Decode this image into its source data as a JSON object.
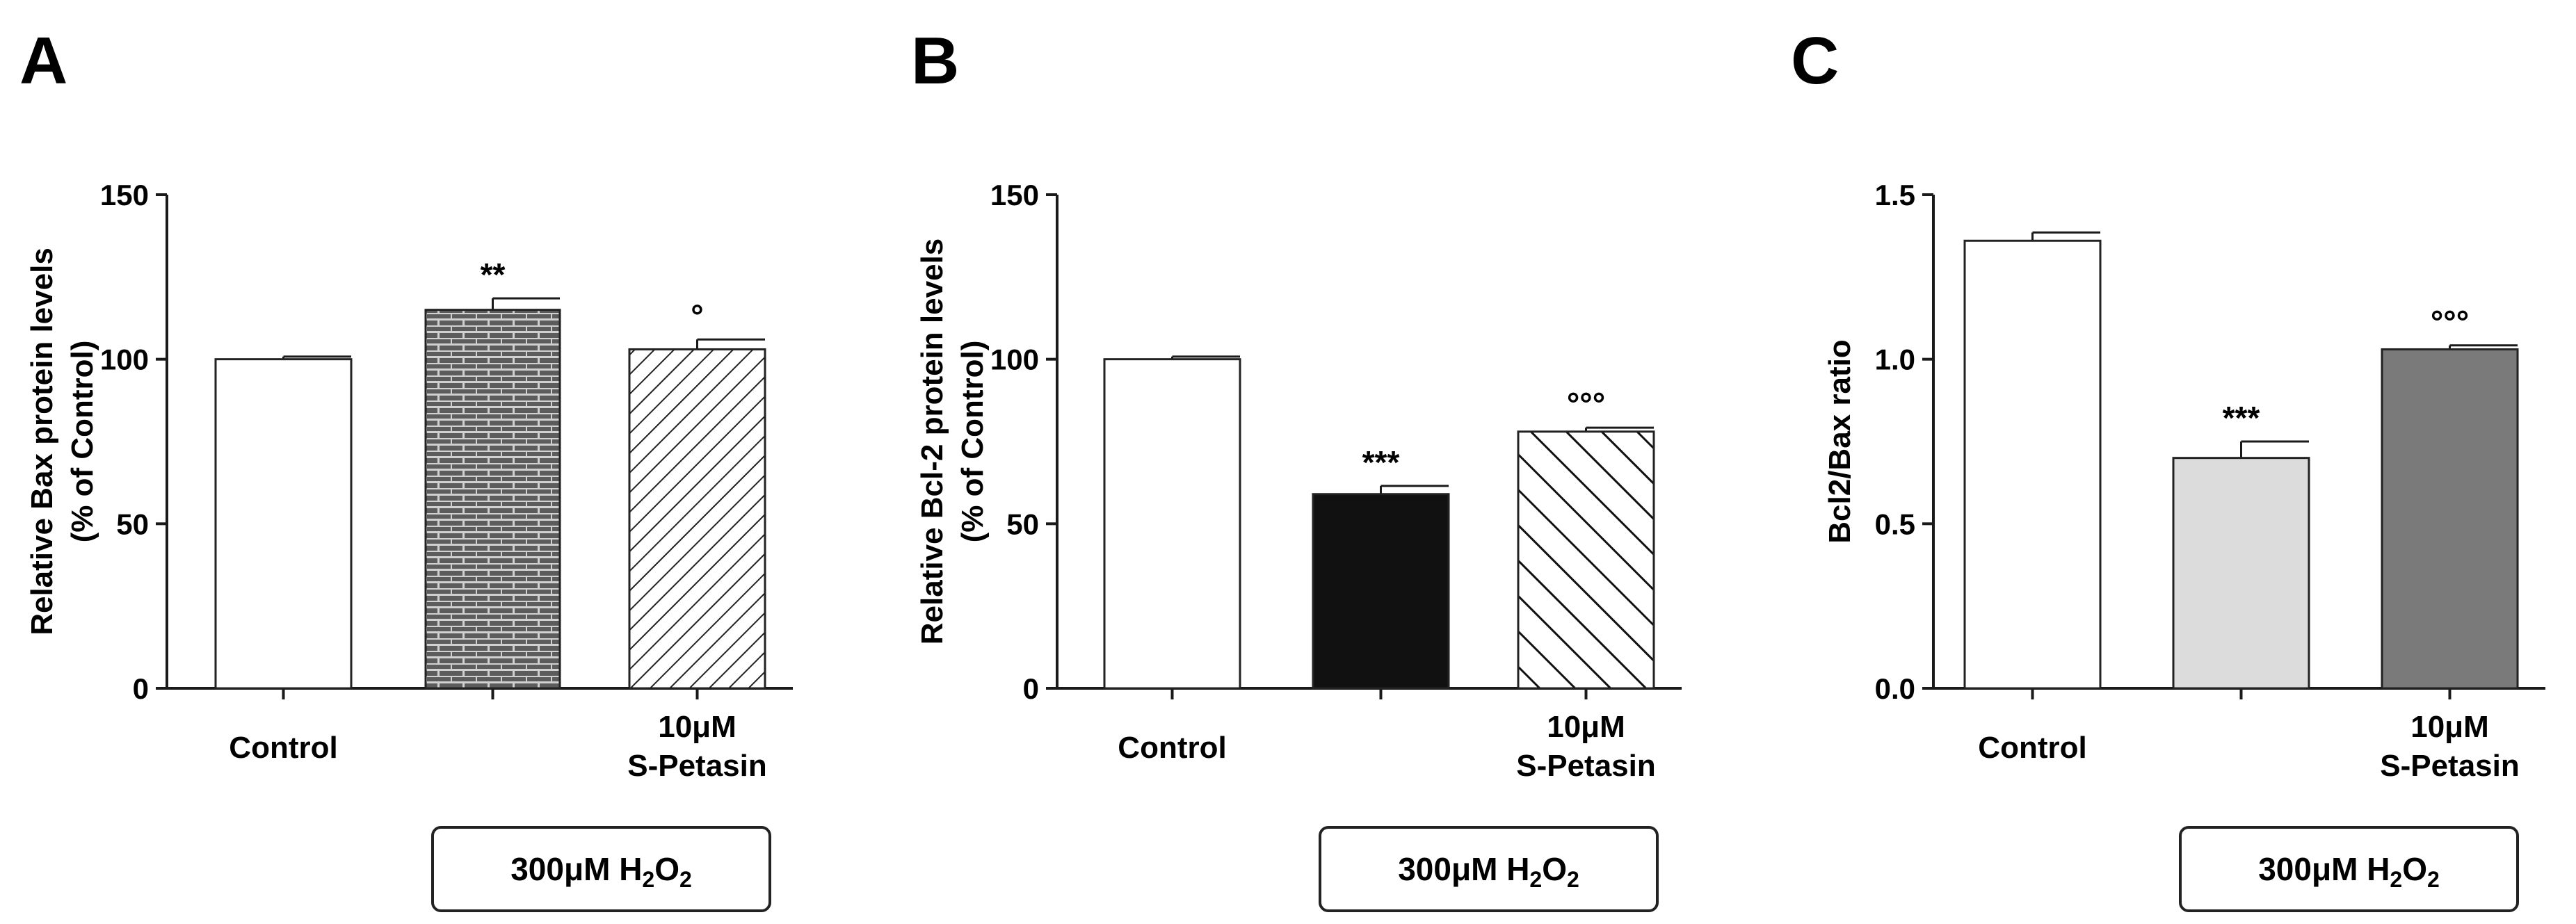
{
  "chart_data": [
    {
      "type": "bar",
      "panel": "A",
      "ylabel": [
        "Relative Bax protein levels",
        "(% of Control)"
      ],
      "ylim": [
        0,
        150
      ],
      "yticks": [
        "0",
        "50",
        "100",
        "150"
      ],
      "categories": [
        "Control",
        "",
        "10μM S-Petasin"
      ],
      "category_labels": [
        [
          "Control"
        ],
        [],
        [
          "10μM",
          "S-Petasin"
        ]
      ],
      "values": [
        100,
        115,
        103
      ],
      "errors": [
        0.8,
        3.5,
        3
      ],
      "annotations": [
        "",
        "**",
        "°"
      ],
      "fills": [
        "white",
        "brick",
        "hatch-fwd"
      ],
      "treatment": "300μM H2O2"
    },
    {
      "type": "bar",
      "panel": "B",
      "ylabel": [
        "Relative Bcl-2 protein levels",
        "(% of Control)"
      ],
      "ylim": [
        0,
        150
      ],
      "yticks": [
        "0",
        "50",
        "100",
        "150"
      ],
      "categories": [
        "Control",
        "",
        "10μM S-Petasin"
      ],
      "category_labels": [
        [
          "Control"
        ],
        [],
        [
          "10μM",
          "S-Petasin"
        ]
      ],
      "values": [
        100,
        59,
        78
      ],
      "errors": [
        0.8,
        2.5,
        1.2
      ],
      "annotations": [
        "",
        "***",
        "°°°"
      ],
      "fills": [
        "white",
        "black",
        "hatch-back"
      ],
      "treatment": "300μM H2O2"
    },
    {
      "type": "bar",
      "panel": "C",
      "ylabel": [
        "Bcl2/Bax ratio"
      ],
      "ylim": [
        0,
        1.5
      ],
      "yticks": [
        "0.0",
        "0.5",
        "1.0",
        "1.5"
      ],
      "categories": [
        "Control",
        "",
        "10μM S-Petasin"
      ],
      "category_labels": [
        [
          "Control"
        ],
        [],
        [
          "10μM",
          "S-Petasin"
        ]
      ],
      "values": [
        1.36,
        0.7,
        1.03
      ],
      "errors": [
        0.025,
        0.05,
        0.012
      ],
      "annotations": [
        "",
        "***",
        "°°°"
      ],
      "fills": [
        "white",
        "lightgray",
        "darkgray"
      ],
      "treatment": "300μM H2O2"
    }
  ],
  "colors": {
    "white": "#ffffff",
    "black": "#111111",
    "lightgray": "#dcdcdc",
    "darkgray": "#7a7a7a",
    "axis": "#1a1a1a"
  }
}
